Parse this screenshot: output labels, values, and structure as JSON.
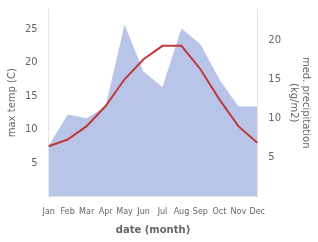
{
  "chart_data": {
    "type": "line",
    "xlabel": "date (month)",
    "ylabel": "max temp (C)",
    "y2label": "med. precipitation\n(kg/m2)",
    "categories": [
      "Jan",
      "Feb",
      "Mar",
      "Apr",
      "May",
      "Jun",
      "Jul",
      "Aug",
      "Sep",
      "Oct",
      "Nov",
      "Dec"
    ],
    "series": [
      {
        "type": "area",
        "axis": "y2",
        "color": "#b8c4e8",
        "values": [
          6.5,
          10.5,
          10.0,
          11.5,
          22.0,
          16.0,
          14.0,
          21.5,
          19.5,
          15.0,
          11.5,
          11.5
        ]
      },
      {
        "type": "line",
        "color": "#c0393a",
        "values": [
          7.5,
          8.5,
          10.5,
          13.5,
          17.5,
          20.5,
          22.5,
          22.5,
          19.0,
          14.5,
          10.5,
          8.0
        ]
      }
    ],
    "ylim": [
      0,
      28
    ],
    "yticks": [
      5,
      10,
      15,
      20,
      25
    ],
    "y2lim": [
      0,
      24
    ],
    "y2ticks": [
      5,
      10,
      15,
      20
    ],
    "grid": false
  }
}
